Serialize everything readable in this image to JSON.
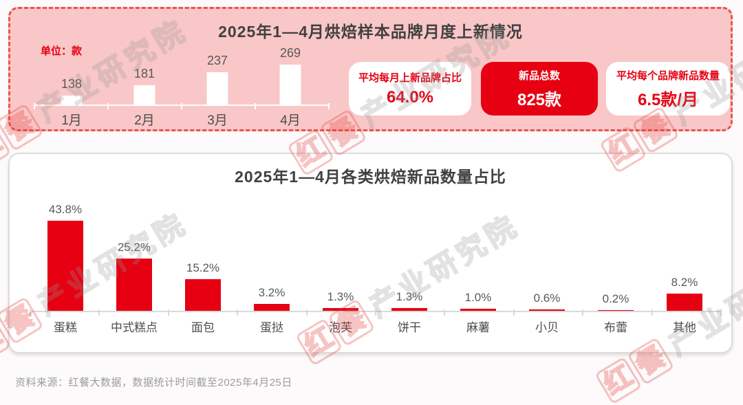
{
  "page": {
    "source_note": "资料来源：红餐大数据，数据统计时间截至2025年4月25日",
    "watermark": {
      "brand_chars": [
        "红",
        "餐"
      ],
      "suffix": "产业研究院"
    }
  },
  "colors": {
    "accent_red": "#E60012",
    "panel_pink": "#F9C7C7",
    "dashed_border_red": "#E9534F",
    "title_gray": "#404040",
    "label_gray": "#595959",
    "axis_gray": "#D9D9D9",
    "source_gray": "#9C9C9C",
    "white_bar": "#FFFFFF"
  },
  "top_panel": {
    "title": "2025年1—4月烘焙样本品牌月度上新情况",
    "unit_label": "单位：款",
    "stat_cards": [
      {
        "label": "平均每月上新品牌占比",
        "value": "64.0%",
        "variant": "light"
      },
      {
        "label": "新品总数",
        "value": "825款",
        "variant": "solid"
      },
      {
        "label": "平均每个品牌新品数量",
        "value": "6.5款/月",
        "variant": "light"
      }
    ]
  },
  "bottom_panel": {
    "title": "2025年1—4月各类烘焙新品数量占比"
  },
  "chart_data": [
    {
      "type": "bar",
      "title": "2025年1—4月烘焙样本品牌月度上新情况",
      "unit": "款",
      "categories": [
        "1月",
        "2月",
        "3月",
        "4月"
      ],
      "values": [
        138,
        181,
        237,
        269
      ],
      "data_labels": [
        "138",
        "181",
        "237",
        "269"
      ],
      "bar_color": "#FFFFFF",
      "label_color": "#595959",
      "ylim": [
        100,
        280
      ],
      "grid": false,
      "legend": false,
      "xlabel": "",
      "ylabel": "款"
    },
    {
      "type": "bar",
      "title": "2025年1—4月各类烘焙新品数量占比",
      "unit": "%",
      "categories": [
        "蛋糕",
        "中式糕点",
        "面包",
        "蛋挞",
        "泡芙",
        "饼干",
        "麻薯",
        "小贝",
        "布蕾",
        "其他"
      ],
      "values": [
        43.8,
        25.2,
        15.2,
        3.2,
        1.3,
        1.3,
        1.0,
        0.6,
        0.2,
        8.2
      ],
      "data_labels": [
        "43.8%",
        "25.2%",
        "15.2%",
        "3.2%",
        "1.3%",
        "1.3%",
        "1.0%",
        "0.6%",
        "0.2%",
        "8.2%"
      ],
      "bar_color": "#E60012",
      "label_color": "#595959",
      "ylim": [
        0,
        48
      ],
      "grid": false,
      "legend": false,
      "xlabel": "",
      "ylabel": "%"
    }
  ]
}
